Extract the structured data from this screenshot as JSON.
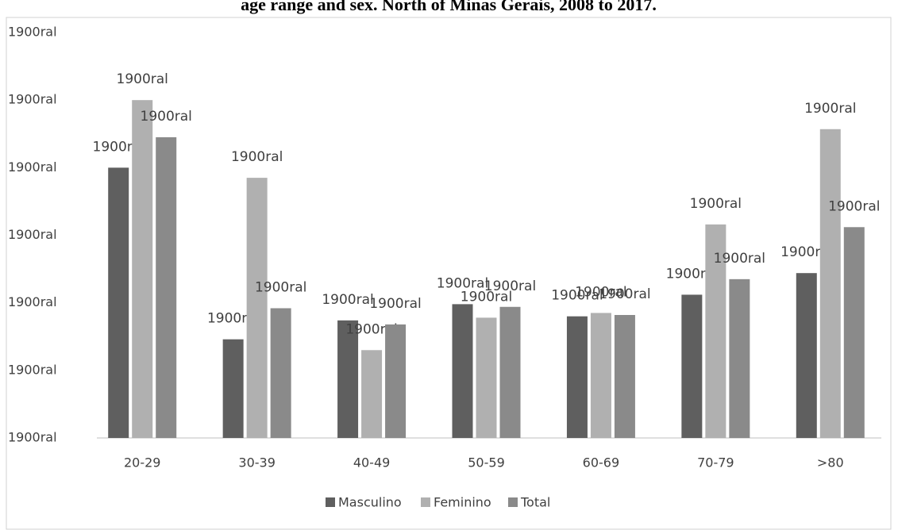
{
  "chart_data": {
    "type": "bar",
    "title": "age range and sex. North of Minas Gerais, 2008 to 2017.",
    "categories": [
      "20-29",
      "30-39",
      "40-49",
      "50-59",
      "60-69",
      "70-79",
      ">80"
    ],
    "series": [
      {
        "name": "Masculino",
        "color": "#5f5f5f",
        "values": [
          4.0,
          1.46,
          1.74,
          1.98,
          1.8,
          2.12,
          2.44
        ],
        "value_labels": [
          "1900ral",
          "1900ral",
          "1900ral",
          "1900ral",
          "1900ral",
          "1900ral",
          "1900ral"
        ]
      },
      {
        "name": "Feminino",
        "color": "#b0b0b0",
        "values": [
          5.0,
          3.85,
          1.3,
          1.78,
          1.85,
          3.16,
          4.57
        ],
        "value_labels": [
          "1900ral",
          "1900ral",
          "1900ral",
          "1900ral",
          "1900ral",
          "1900ral",
          "1900ral"
        ]
      },
      {
        "name": "Total",
        "color": "#8a8a8a",
        "values": [
          4.45,
          1.92,
          1.68,
          1.94,
          1.82,
          2.35,
          3.12
        ],
        "value_labels": [
          "1900ral",
          "1900ral",
          "1900ral",
          "1900ral",
          "1900ral",
          "1900ral",
          "1900ral"
        ]
      }
    ],
    "ylim": [
      0,
      6
    ],
    "yticks": [
      {
        "value": 0,
        "label": "1900ral"
      },
      {
        "value": 1,
        "label": "1900ral"
      },
      {
        "value": 2,
        "label": "1900ral"
      },
      {
        "value": 3,
        "label": "1900ral"
      },
      {
        "value": 4,
        "label": "1900ral"
      },
      {
        "value": 5,
        "label": "1900ral"
      },
      {
        "value": 6,
        "label": "1900ral"
      }
    ],
    "grid": false,
    "legend": "bottom"
  }
}
